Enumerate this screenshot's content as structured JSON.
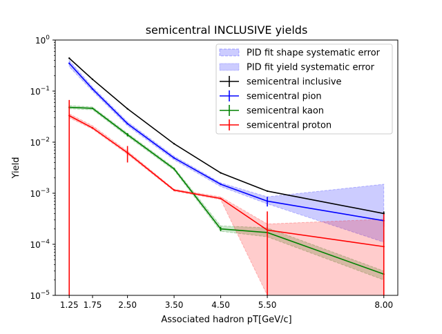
{
  "chart_data": {
    "type": "line",
    "title": "semicentral INCLUSIVE yields",
    "xlabel": "Associated hadron pT[GeV/c]",
    "ylabel": "Yield",
    "yscale": "log",
    "xlim": [
      0.95,
      8.3
    ],
    "ylim": [
      1e-05,
      1
    ],
    "grid": false,
    "legend_position": "top-right",
    "x_ticks": [
      1.25,
      1.75,
      2.5,
      3.5,
      4.5,
      5.5,
      8.0
    ],
    "x_tick_labels": [
      "1.25",
      "1.75",
      "2.50",
      "3.50",
      "4.50",
      "5.50",
      "8.00"
    ],
    "y_ticks": [
      1e-05,
      0.0001,
      0.001,
      0.01,
      0.1,
      1
    ],
    "y_tick_labels": [
      {
        "base": "10",
        "exp": "−5"
      },
      {
        "base": "10",
        "exp": "−4"
      },
      {
        "base": "10",
        "exp": "−3"
      },
      {
        "base": "10",
        "exp": "−2"
      },
      {
        "base": "10",
        "exp": "−1"
      },
      {
        "base": "10",
        "exp": "0"
      }
    ],
    "legend": [
      {
        "label": "PID fit shape systematic error",
        "kind": "shape-band"
      },
      {
        "label": "PID fit yield systematic error",
        "kind": "yield-band"
      },
      {
        "label": "semicentral inclusive",
        "kind": "series",
        "color": "#000000"
      },
      {
        "label": "semicentral pion",
        "kind": "series",
        "color": "#0000ff"
      },
      {
        "label": "semicentral kaon",
        "kind": "series",
        "color": "#008000"
      },
      {
        "label": "semicentral proton",
        "kind": "series",
        "color": "#ff0000"
      }
    ],
    "x": [
      1.25,
      1.75,
      2.5,
      3.5,
      4.5,
      5.5,
      8.0
    ],
    "series": [
      {
        "name": "semicentral inclusive",
        "color": "#000000",
        "values": [
          0.44,
          0.17,
          0.045,
          0.0093,
          0.0025,
          0.0011,
          0.0004
        ],
        "errors": [
          0,
          0,
          0,
          0,
          0,
          0,
          4e-05
        ]
      },
      {
        "name": "semicentral pion",
        "color": "#0000ff",
        "values": [
          0.35,
          0.11,
          0.023,
          0.0049,
          0.0015,
          0.0007,
          0.00029
        ],
        "errors": [
          0,
          0,
          0,
          0,
          0,
          0.00015,
          7e-05
        ]
      },
      {
        "name": "semicentral kaon",
        "color": "#008000",
        "values": [
          0.048,
          0.046,
          0.014,
          0.003,
          0.0002,
          0.00017,
          2.6e-05
        ],
        "errors": [
          0.003,
          0,
          0.001,
          0,
          2e-05,
          0,
          0
        ]
      },
      {
        "name": "semicentral proton",
        "color": "#ff0000",
        "values": [
          0.033,
          0.019,
          0.0062,
          0.00115,
          0.00079,
          0.00019,
          9e-05
        ],
        "errors": [
          0.034,
          0,
          0.0022,
          0,
          0,
          0.00025,
          0.0003
        ]
      }
    ],
    "bands": [
      {
        "series": "semicentral pion",
        "kind": "shape",
        "color": "#0000ff",
        "low": [
          0.3,
          0.1,
          0.021,
          0.0045,
          0.00135,
          0.00062,
          0.00011
        ],
        "high": [
          0.4,
          0.12,
          0.025,
          0.0053,
          0.0016,
          0.00085,
          0.0015
        ]
      },
      {
        "series": "semicentral kaon",
        "kind": "shape",
        "color": "#008000",
        "low": [
          0.045,
          0.043,
          0.013,
          0.0028,
          0.00018,
          0.00014,
          2e-05
        ],
        "high": [
          0.052,
          0.049,
          0.015,
          0.0032,
          0.00023,
          0.00021,
          3e-05
        ]
      },
      {
        "series": "semicentral proton",
        "kind": "shape",
        "color": "#ff0000",
        "low": [
          0.03,
          0.018,
          0.0058,
          0.0011,
          0.00075,
          1e-05,
          1e-05
        ],
        "high": [
          0.036,
          0.021,
          0.0067,
          0.0012,
          0.00085,
          0.00025,
          0.00031
        ]
      }
    ]
  }
}
